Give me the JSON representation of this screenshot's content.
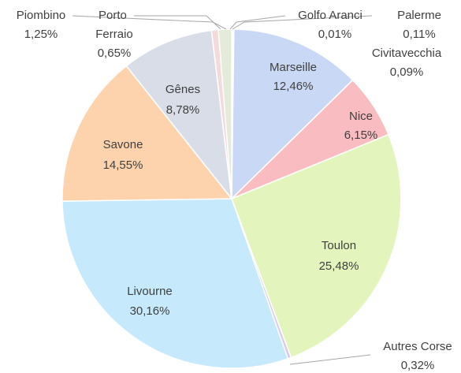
{
  "chart_data": {
    "type": "pie",
    "categories": [
      "Golfo Aranci",
      "Palerme",
      "Civitavecchia",
      "Marseille",
      "Nice",
      "Toulon",
      "Autres Corse",
      "Livourne",
      "Savone",
      "Gênes",
      "Porto Ferraio",
      "Piombino"
    ],
    "values": [
      0.01,
      0.11,
      0.09,
      12.46,
      6.15,
      25.48,
      0.32,
      30.16,
      14.55,
      8.78,
      0.65,
      1.25
    ],
    "value_labels": [
      "0,01%",
      "0,11%",
      "0,09%",
      "12,46%",
      "6,15%",
      "25,48%",
      "0,32%",
      "30,16%",
      "14,55%",
      "8,78%",
      "0,65%",
      "1,25%"
    ],
    "colors": [
      "#dfe7f5",
      "#e8eef8",
      "#e2e8f3",
      "#c9d8f5",
      "#f9bcc0",
      "#e3f5bd",
      "#d9c9ef",
      "#c6eafb",
      "#fdd3ad",
      "#d8dde8",
      "#f4dada",
      "#e4ebd9"
    ]
  }
}
